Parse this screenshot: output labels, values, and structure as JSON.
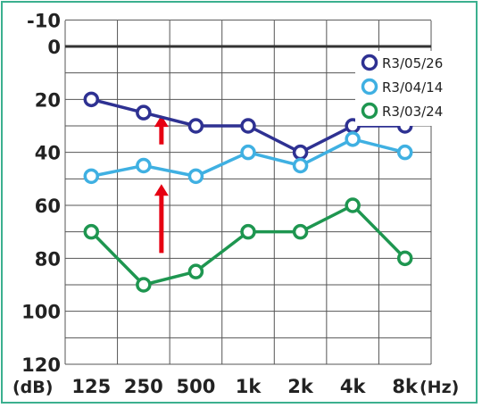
{
  "chart_data": {
    "type": "line",
    "title": "",
    "x": [
      "125",
      "250",
      "500",
      "1k",
      "2k",
      "4k",
      "8k"
    ],
    "x_unit": "(Hz)",
    "y_unit": "(dB)",
    "yticks": [
      "-10",
      "0",
      "20",
      "40",
      "60",
      "80",
      "100",
      "120"
    ],
    "ylim": [
      -10,
      120
    ],
    "y_inverted": true,
    "grid": true,
    "legend_position": "top-right",
    "series": [
      {
        "name": "R3/05/26",
        "color": "#2e3192",
        "values": [
          20,
          25,
          30,
          30,
          40,
          30,
          30
        ]
      },
      {
        "name": "R3/04/14",
        "color": "#3fb0e2",
        "values": [
          49,
          45,
          49,
          40,
          45,
          35,
          40
        ]
      },
      {
        "name": "R3/03/24",
        "color": "#1e9650",
        "values": [
          70,
          90,
          85,
          70,
          70,
          60,
          80
        ]
      }
    ],
    "annotations": [
      {
        "type": "arrow",
        "color": "#e60012",
        "x": "250",
        "from": 37,
        "to": 26
      },
      {
        "type": "arrow",
        "color": "#e60012",
        "x": "250",
        "from": 78,
        "to": 52
      }
    ]
  }
}
